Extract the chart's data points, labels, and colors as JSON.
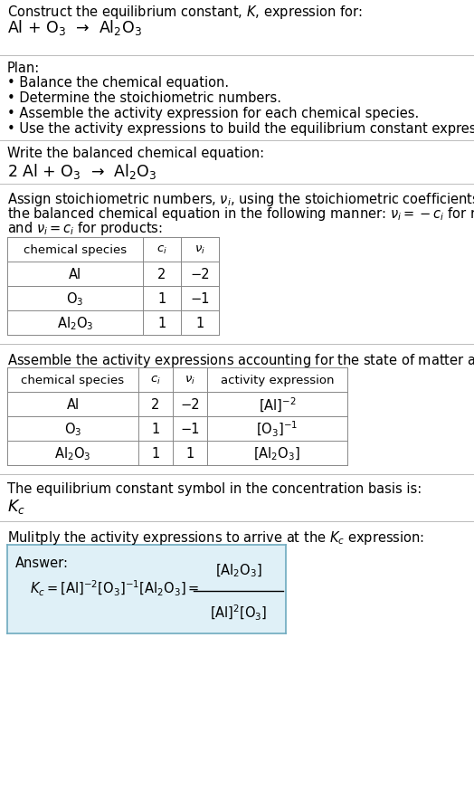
{
  "title_line1": "Construct the equilibrium constant, $K$, expression for:",
  "title_line2": "Al + O$_3$  →  Al$_2$O$_3$",
  "plan_header": "Plan:",
  "plan_bullets": [
    "• Balance the chemical equation.",
    "• Determine the stoichiometric numbers.",
    "• Assemble the activity expression for each chemical species.",
    "• Use the activity expressions to build the equilibrium constant expression."
  ],
  "balanced_eq_header": "Write the balanced chemical equation:",
  "balanced_eq": "2 Al + O$_3$  →  Al$_2$O$_3$",
  "stoich_header_parts": [
    "Assign stoichiometric numbers, $\\nu_i$, using the stoichiometric coefficients, $c_i$, from",
    "the balanced chemical equation in the following manner: $\\nu_i = -c_i$ for reactants",
    "and $\\nu_i = c_i$ for products:"
  ],
  "table1_headers": [
    "chemical species",
    "$c_i$",
    "$\\nu_i$"
  ],
  "table1_rows": [
    [
      "Al",
      "2",
      "−2"
    ],
    [
      "O$_3$",
      "1",
      "−1"
    ],
    [
      "Al$_2$O$_3$",
      "1",
      "1"
    ]
  ],
  "activity_header": "Assemble the activity expressions accounting for the state of matter and $\\nu_i$:",
  "table2_headers": [
    "chemical species",
    "$c_i$",
    "$\\nu_i$",
    "activity expression"
  ],
  "table2_rows": [
    [
      "Al",
      "2",
      "−2",
      "[Al]$^{-2}$"
    ],
    [
      "O$_3$",
      "1",
      "−1",
      "[O$_3$]$^{-1}$"
    ],
    [
      "Al$_2$O$_3$",
      "1",
      "1",
      "[Al$_2$O$_3$]"
    ]
  ],
  "kc_header": "The equilibrium constant symbol in the concentration basis is:",
  "kc_symbol": "$K_c$",
  "multiply_header": "Mulitply the activity expressions to arrive at the $K_c$ expression:",
  "answer_label": "Answer:",
  "bg_color": "#ffffff",
  "answer_box_color": "#dff0f7",
  "answer_box_border": "#6eaabf",
  "text_color": "#000000",
  "divider_color": "#bbbbbb",
  "table_color": "#888888"
}
